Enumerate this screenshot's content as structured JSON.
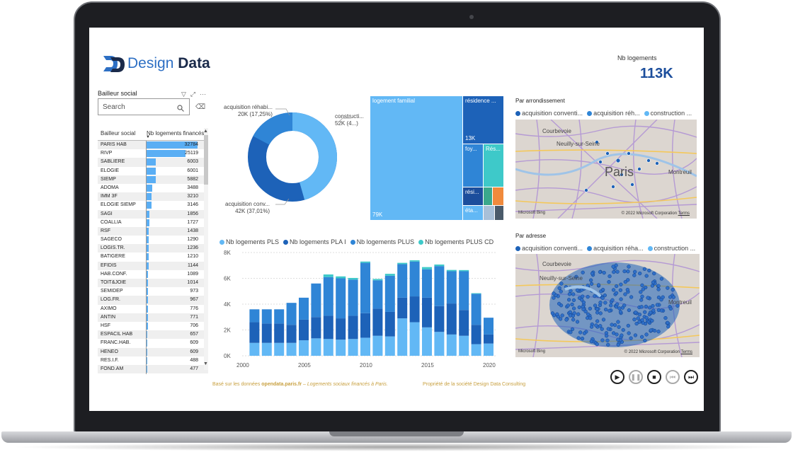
{
  "header": {
    "logo_text_1": "Design",
    "logo_text_2": "Data",
    "kpi_label": "Nb logements",
    "kpi_value": "113K"
  },
  "slicer": {
    "title": "Bailleur social",
    "search_placeholder": "Search",
    "col1": "Bailleur social",
    "col2": "Nb logements financés",
    "rows": [
      {
        "name": "PARIS HAB",
        "value": "32784",
        "n": 32784
      },
      {
        "name": "RIVP",
        "value": "25119",
        "n": 25119
      },
      {
        "name": "SABLIERE",
        "value": "6003",
        "n": 6003
      },
      {
        "name": "ELOGIE",
        "value": "6001",
        "n": 6001
      },
      {
        "name": "SIEMP",
        "value": "5882",
        "n": 5882
      },
      {
        "name": "ADOMA",
        "value": "3488",
        "n": 3488
      },
      {
        "name": "IMM 3F",
        "value": "3210",
        "n": 3210
      },
      {
        "name": "ELOGIE SIEMP",
        "value": "3146",
        "n": 3146
      },
      {
        "name": "SAGI",
        "value": "1856",
        "n": 1856
      },
      {
        "name": "COALLIA",
        "value": "1727",
        "n": 1727
      },
      {
        "name": "RSF",
        "value": "1438",
        "n": 1438
      },
      {
        "name": "SAGECO",
        "value": "1290",
        "n": 1290
      },
      {
        "name": "LOGIS.TR.",
        "value": "1236",
        "n": 1236
      },
      {
        "name": "BATIGERE",
        "value": "1210",
        "n": 1210
      },
      {
        "name": "EFIDIS",
        "value": "1144",
        "n": 1144
      },
      {
        "name": "HAB.CONF.",
        "value": "1089",
        "n": 1089
      },
      {
        "name": "TOIT&JOIE",
        "value": "1014",
        "n": 1014
      },
      {
        "name": "SEMIDEP",
        "value": "973",
        "n": 973
      },
      {
        "name": "LOG.FR.",
        "value": "967",
        "n": 967
      },
      {
        "name": "AXIMO",
        "value": "776",
        "n": 776
      },
      {
        "name": "ANTIN",
        "value": "771",
        "n": 771
      },
      {
        "name": "HSF",
        "value": "706",
        "n": 706
      },
      {
        "name": "ESPACIL HAB",
        "value": "657",
        "n": 657
      },
      {
        "name": "FRANC.HAB.",
        "value": "609",
        "n": 609
      },
      {
        "name": "HENEO",
        "value": "609",
        "n": 609
      },
      {
        "name": "RES.I.F.",
        "value": "488",
        "n": 488
      },
      {
        "name": "FOND.AM",
        "value": "477",
        "n": 477
      }
    ]
  },
  "donut": {
    "label_top_name": "acquisition réhabi...",
    "label_top_value": "20K (17,25%)",
    "label_right_name": "constructi...",
    "label_right_value": "52K (4...)",
    "label_bottom_name": "acquisition conv...",
    "label_bottom_value": "42K (37,01%)"
  },
  "treemap": {
    "t1": "logement familial",
    "t1_value": "79K",
    "t2": "résidence ...",
    "t2_value": "13K",
    "t3": "foy...",
    "t4": "Rés...",
    "t5": "rési...",
    "t6": "éta..."
  },
  "chart_data": {
    "type": "bar",
    "stacked": true,
    "x": [
      2001,
      2002,
      2003,
      2004,
      2005,
      2006,
      2007,
      2008,
      2009,
      2010,
      2011,
      2012,
      2013,
      2014,
      2015,
      2016,
      2017,
      2018,
      2019,
      2020
    ],
    "series": [
      {
        "name": "Nb logements PLS",
        "color": "#62b8f5",
        "values": [
          1000,
          1000,
          1000,
          1000,
          1200,
          1350,
          1300,
          1250,
          1300,
          1400,
          1550,
          1500,
          2900,
          2600,
          2200,
          1850,
          1650,
          1550,
          900,
          950
        ]
      },
      {
        "name": "Nb logements PLA I",
        "color": "#1d62b8",
        "values": [
          1600,
          1500,
          1500,
          1400,
          1600,
          1650,
          1800,
          1650,
          1800,
          1900,
          2100,
          1900,
          1600,
          2000,
          2300,
          2000,
          2400,
          2000,
          1500,
          700
        ]
      },
      {
        "name": "Nb logements PLUS",
        "color": "#2f85d6",
        "values": [
          1000,
          1100,
          1100,
          1700,
          1700,
          2600,
          3000,
          3100,
          2800,
          3900,
          2200,
          2800,
          2600,
          2700,
          2200,
          3100,
          2500,
          3000,
          2400,
          1300
        ]
      },
      {
        "name": "Nb logements PLUS CD",
        "color": "#3ec9c9",
        "values": [
          0,
          0,
          0,
          0,
          0,
          0,
          200,
          150,
          130,
          100,
          100,
          150,
          100,
          100,
          170,
          120,
          100,
          90,
          50,
          0
        ]
      }
    ],
    "ylim": [
      0,
      8000
    ],
    "yticks": [
      "0K",
      "2K",
      "4K",
      "6K",
      "8K"
    ],
    "xticks": [
      "2000",
      "2005",
      "2010",
      "2015",
      "2020"
    ]
  },
  "maps": {
    "arr_title": "Par arrondissement",
    "addr_title": "Par adresse",
    "legend1": "acquisition conventi...",
    "legend2": "acquisition réh...",
    "legend2b": "acquisition réha...",
    "legend3": "construction ...",
    "city1": "Courbevoie",
    "city2": "Neuilly-sur-Seine",
    "city3": "Paris",
    "city4": "Montreuil",
    "credit": "© 2022 Microsoft Corporation",
    "terms": "Terms",
    "bing": "Microsoft Bing"
  },
  "footer": {
    "left_prefix": "Basé sur les données",
    "left_link": "opendata.paris.fr",
    "left_suffix": "– Logements sociaux financés à Paris.",
    "right": "Propriété de la société Design Data Consulting"
  }
}
